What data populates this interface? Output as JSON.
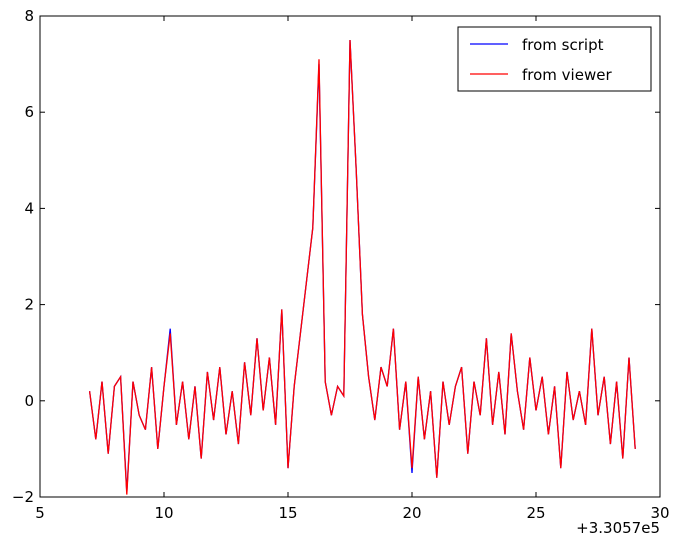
{
  "chart_data": {
    "type": "line",
    "x": [
      7,
      7.25,
      7.5,
      7.75,
      8,
      8.25,
      8.5,
      8.75,
      9,
      9.25,
      9.5,
      9.75,
      10,
      10.25,
      10.5,
      10.75,
      11,
      11.25,
      11.5,
      11.75,
      12,
      12.25,
      12.5,
      12.75,
      13,
      13.25,
      13.5,
      13.75,
      14,
      14.25,
      14.5,
      14.75,
      15,
      15.25,
      15.5,
      15.75,
      16,
      16.25,
      16.5,
      16.75,
      17,
      17.25,
      17.5,
      17.75,
      18,
      18.25,
      18.5,
      18.75,
      19,
      19.25,
      19.5,
      19.75,
      20,
      20.25,
      20.5,
      20.75,
      21,
      21.25,
      21.5,
      21.75,
      22,
      22.25,
      22.5,
      22.75,
      23,
      23.25,
      23.5,
      23.75,
      24,
      24.25,
      24.5,
      24.75,
      25,
      25.25,
      25.5,
      25.75,
      26,
      26.25,
      26.5,
      26.75,
      27,
      27.25,
      27.5,
      27.75,
      28,
      28.25,
      28.5,
      28.75,
      29
    ],
    "series": [
      {
        "name": "from script",
        "color": "#0000ff",
        "values": [
          0.2,
          -0.8,
          0.4,
          -1.1,
          0.3,
          0.5,
          -1.9,
          0.4,
          -0.3,
          -0.6,
          0.7,
          -1.0,
          0.3,
          1.5,
          -0.5,
          0.4,
          -0.8,
          0.3,
          -1.2,
          0.6,
          -0.4,
          0.7,
          -0.7,
          0.2,
          -0.9,
          0.8,
          -0.3,
          1.3,
          -0.2,
          0.9,
          -0.5,
          1.9,
          -1.4,
          0.3,
          1.4,
          2.5,
          3.6,
          7.0,
          0.4,
          -0.3,
          0.3,
          0.1,
          7.5,
          4.8,
          1.8,
          0.5,
          -0.4,
          0.7,
          0.3,
          1.5,
          -0.6,
          0.4,
          -1.5,
          0.5,
          -0.8,
          0.2,
          -1.6,
          0.4,
          -0.5,
          0.3,
          0.7,
          -1.1,
          0.4,
          -0.3,
          1.3,
          -0.5,
          0.6,
          -0.7,
          1.4,
          0.2,
          -0.6,
          0.9,
          -0.2,
          0.5,
          -0.7,
          0.3,
          -1.4,
          0.6,
          -0.4,
          0.2,
          -0.5,
          1.5,
          -0.3,
          0.5,
          -0.9,
          0.4,
          -1.2,
          0.9,
          -1.0
        ]
      },
      {
        "name": "from viewer",
        "color": "#ff0000",
        "values": [
          0.2,
          -0.8,
          0.4,
          -1.1,
          0.3,
          0.5,
          -1.95,
          0.4,
          -0.3,
          -0.6,
          0.7,
          -1.0,
          0.3,
          1.4,
          -0.5,
          0.4,
          -0.8,
          0.3,
          -1.2,
          0.6,
          -0.4,
          0.7,
          -0.7,
          0.2,
          -0.9,
          0.8,
          -0.3,
          1.3,
          -0.2,
          0.9,
          -0.5,
          1.9,
          -1.4,
          0.3,
          1.4,
          2.5,
          3.6,
          7.1,
          0.4,
          -0.3,
          0.3,
          0.1,
          7.5,
          4.8,
          1.8,
          0.5,
          -0.4,
          0.7,
          0.3,
          1.5,
          -0.6,
          0.4,
          -1.4,
          0.5,
          -0.8,
          0.2,
          -1.6,
          0.4,
          -0.5,
          0.3,
          0.7,
          -1.1,
          0.4,
          -0.3,
          1.3,
          -0.5,
          0.6,
          -0.7,
          1.4,
          0.2,
          -0.6,
          0.9,
          -0.2,
          0.5,
          -0.7,
          0.3,
          -1.4,
          0.6,
          -0.4,
          0.2,
          -0.5,
          1.5,
          -0.3,
          0.5,
          -0.9,
          0.4,
          -1.2,
          0.9,
          -1.0
        ]
      }
    ],
    "xlim": [
      5,
      30
    ],
    "xticks": [
      5,
      10,
      15,
      20,
      25,
      30
    ],
    "ylim": [
      -2,
      8
    ],
    "yticks": [
      {
        "value": -2,
        "label": "−2"
      },
      0,
      2,
      4,
      6,
      8
    ],
    "x_offset_label": "+3.3057e5",
    "legend": "upper right",
    "grid": false
  }
}
